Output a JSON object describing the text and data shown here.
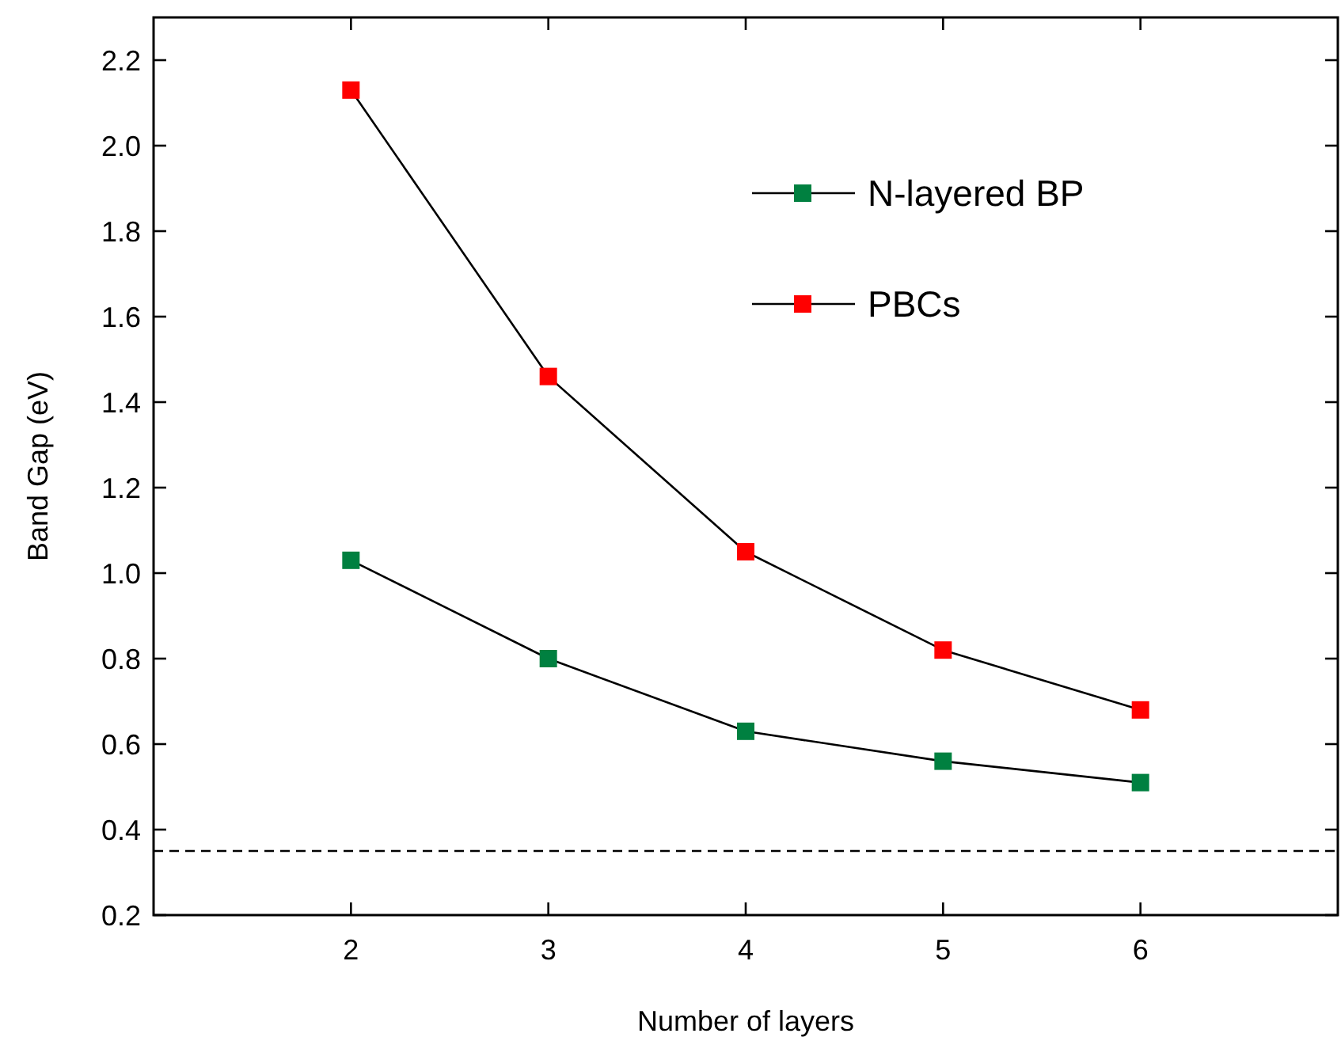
{
  "chart_data": {
    "type": "line",
    "xlabel": "Number of layers",
    "ylabel": "Band Gap (eV)",
    "x": [
      2,
      3,
      4,
      5,
      6
    ],
    "xlim": [
      1,
      7
    ],
    "ylim": [
      0.2,
      2.3
    ],
    "xticks": [
      2,
      3,
      4,
      5,
      6
    ],
    "yticks": [
      {
        "value": 0.2,
        "label": "0.2"
      },
      {
        "value": 0.4,
        "label": "0.4"
      },
      {
        "value": 0.6,
        "label": "0.6"
      },
      {
        "value": 0.8,
        "label": "0.8"
      },
      {
        "value": 1.0,
        "label": "1.0"
      },
      {
        "value": 1.2,
        "label": "1.2"
      },
      {
        "value": 1.4,
        "label": "1.4"
      },
      {
        "value": 1.6,
        "label": "1.6"
      },
      {
        "value": 1.8,
        "label": "1.8"
      },
      {
        "value": 2.0,
        "label": "2.0"
      },
      {
        "value": 2.2,
        "label": "2.2"
      }
    ],
    "marker": "square",
    "line_style": "solid",
    "legend": "top right",
    "grid": false,
    "series": [
      {
        "name": "N-layered BP",
        "color": "#008040",
        "values": [
          1.03,
          0.8,
          0.63,
          0.56,
          0.51
        ]
      },
      {
        "name": "PBCs",
        "color": "#ff0000",
        "values": [
          2.13,
          1.46,
          1.05,
          0.82,
          0.68
        ]
      }
    ],
    "ref_lines": [
      {
        "axis": "y",
        "value": 0.35,
        "line_style": "dashed",
        "color": "#000000"
      }
    ]
  }
}
